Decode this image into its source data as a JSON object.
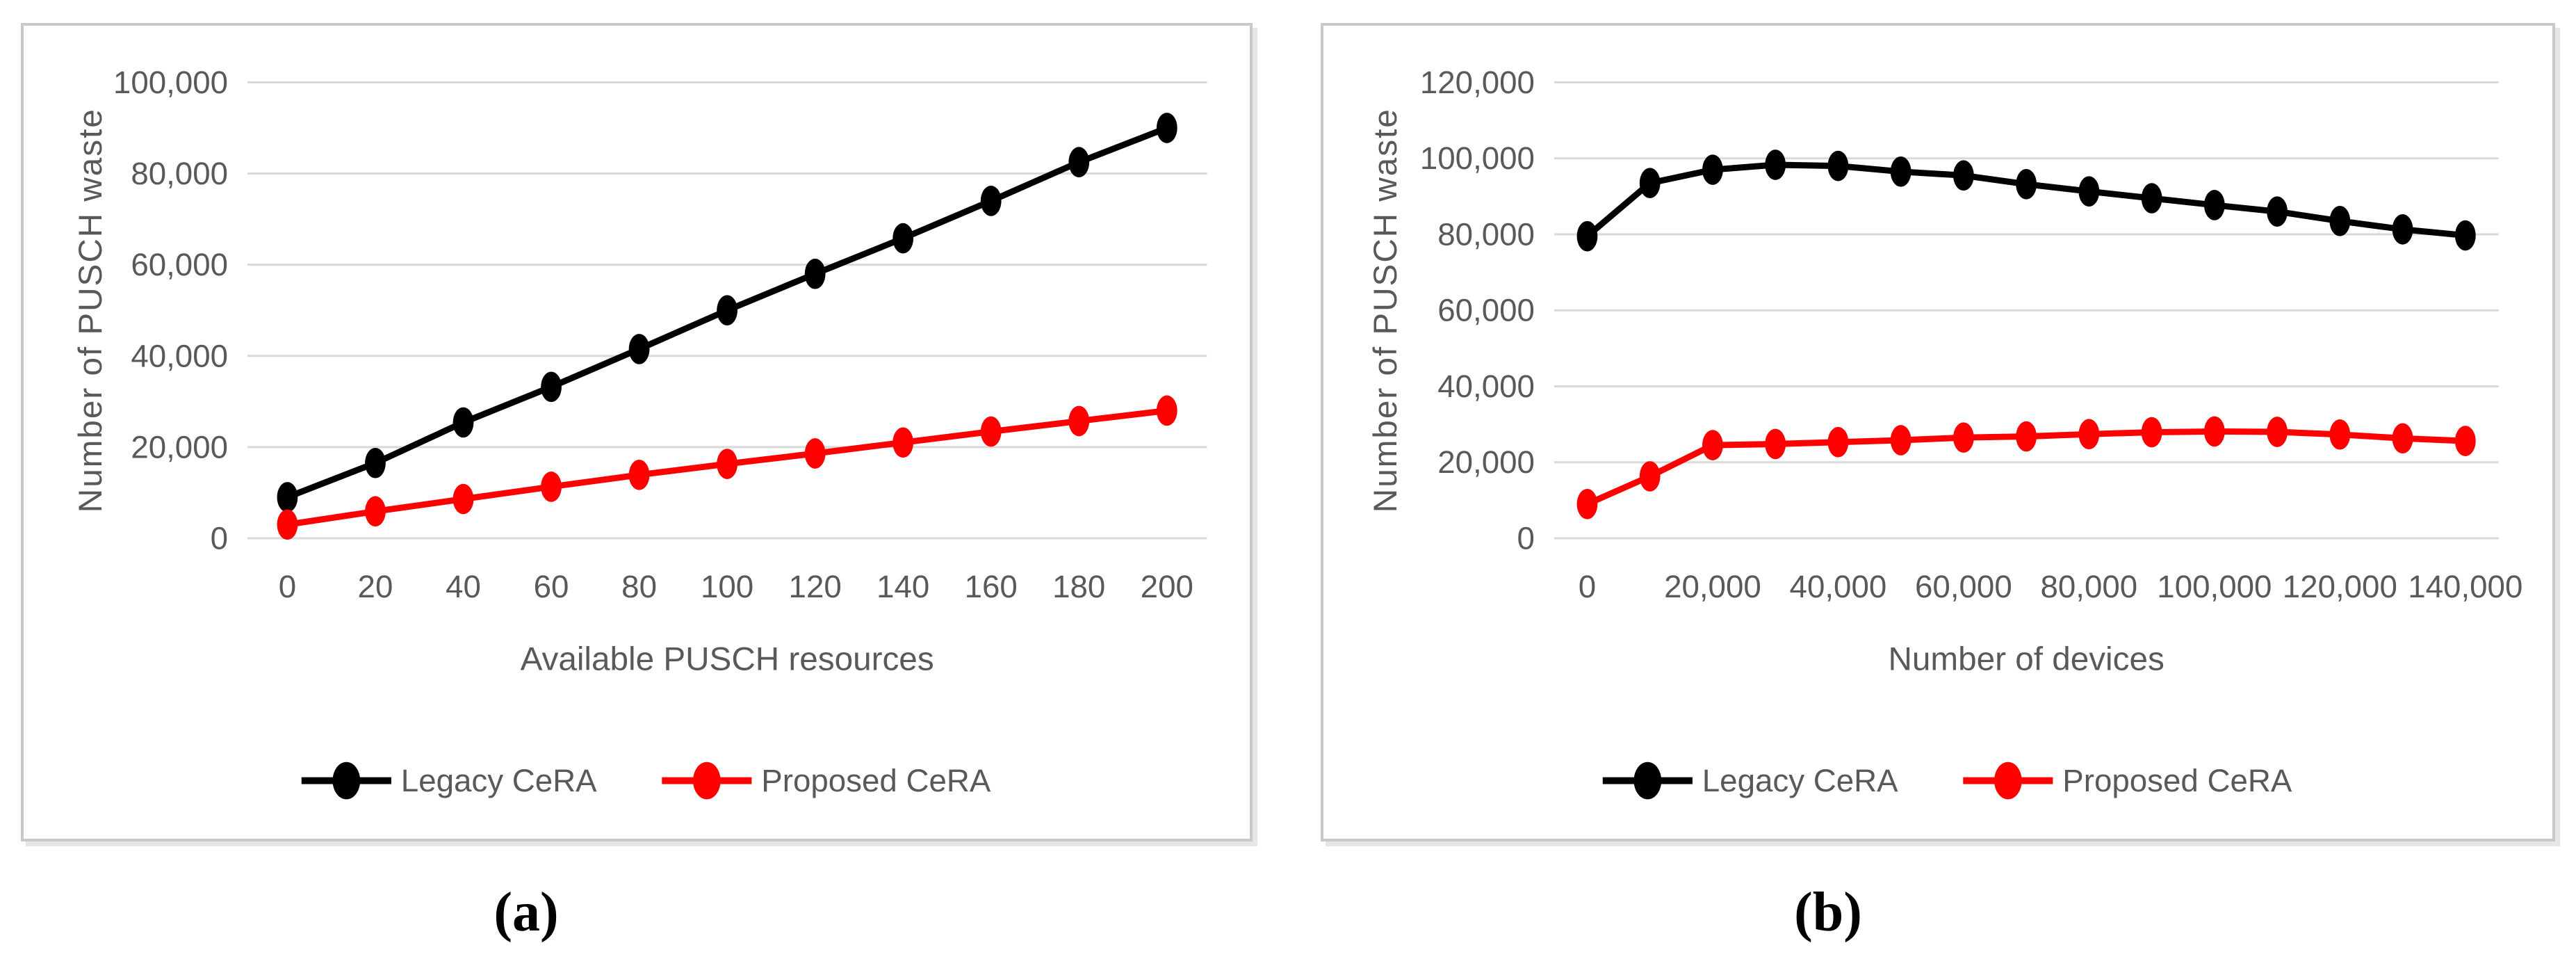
{
  "figure": {
    "panel_count": 2,
    "captions": {
      "a": "(a)",
      "b": "(b)"
    }
  },
  "colors": {
    "text_gray": "#595959",
    "gridline": "#d9d9d9",
    "panel_border": "#c9c9c9",
    "legacy_series": "#000000",
    "proposed_series": "#ff0000",
    "background": "#ffffff"
  },
  "chart_data": [
    {
      "type": "line",
      "title": "",
      "caption": "(a)",
      "xlabel": "Available PUSCH resources",
      "ylabel": "Number of PUSCH waste",
      "ylim": [
        0,
        100000
      ],
      "ytick_step": 20000,
      "ytick_labels": [
        "0",
        "20,000",
        "40,000",
        "60,000",
        "80,000",
        "100,000"
      ],
      "x": [
        0,
        20,
        40,
        60,
        80,
        100,
        120,
        140,
        160,
        180,
        200
      ],
      "xtick_labels": [
        "0",
        "20",
        "40",
        "60",
        "80",
        "100",
        "120",
        "140",
        "160",
        "180",
        "200"
      ],
      "xtick_every": 1,
      "grid": true,
      "legend_position": "bottom",
      "series": [
        {
          "name": "Legacy CeRA",
          "color": "#000000",
          "values": [
            9000,
            16500,
            25400,
            33200,
            41500,
            50000,
            58000,
            65800,
            74000,
            82500,
            90000
          ]
        },
        {
          "name": "Proposed CeRA",
          "color": "#ff0000",
          "values": [
            3000,
            5900,
            8600,
            11300,
            13900,
            16300,
            18600,
            21000,
            23400,
            25700,
            28000
          ]
        }
      ]
    },
    {
      "type": "line",
      "title": "",
      "caption": "(b)",
      "xlabel": "Number of devices",
      "ylabel": "Number of PUSCH waste",
      "ylim": [
        0,
        120000
      ],
      "ytick_step": 20000,
      "ytick_labels": [
        "0",
        "20,000",
        "40,000",
        "60,000",
        "80,000",
        "100,000",
        "120,000"
      ],
      "x": [
        0,
        10000,
        20000,
        30000,
        40000,
        50000,
        60000,
        70000,
        80000,
        90000,
        100000,
        110000,
        120000,
        130000,
        140000
      ],
      "xtick_labels": [
        "0",
        "20,000",
        "40,000",
        "60,000",
        "80,000",
        "100,000",
        "120,000",
        "140,000"
      ],
      "xtick_every": 2,
      "grid": true,
      "legend_position": "bottom",
      "series": [
        {
          "name": "Legacy CeRA",
          "color": "#000000",
          "values": [
            79500,
            93500,
            97000,
            98300,
            98000,
            96500,
            95500,
            93200,
            91300,
            89500,
            87700,
            86000,
            83500,
            81300,
            79700
          ]
        },
        {
          "name": "Proposed CeRA",
          "color": "#ff0000",
          "values": [
            9000,
            16300,
            24500,
            24800,
            25300,
            25800,
            26500,
            26800,
            27400,
            27900,
            28100,
            28000,
            27300,
            26300,
            25600
          ]
        }
      ]
    }
  ]
}
